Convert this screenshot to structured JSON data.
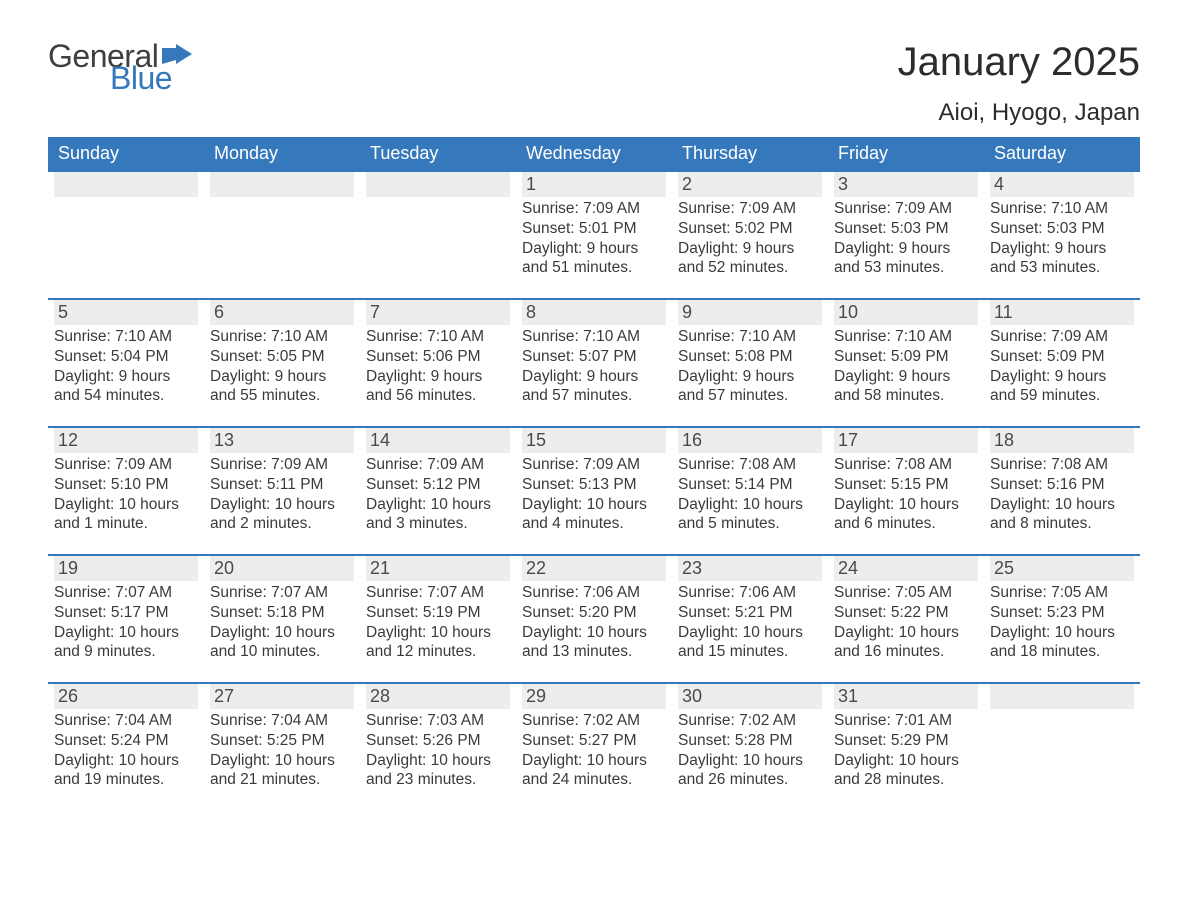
{
  "logo": {
    "text_general": "General",
    "text_blue": "Blue"
  },
  "title": "January 2025",
  "subtitle": "Aioi, Hyogo, Japan",
  "colors": {
    "header_bg": "#3579bc",
    "header_text": "#ffffff",
    "row_top_border": "#3579bc",
    "daynum_bg": "#ededed",
    "body_text": "#3a3a3a",
    "logo_blue": "#3579bc",
    "logo_gray": "#3f3f3f",
    "background": "#ffffff"
  },
  "typography": {
    "title_fontsize": 40,
    "subtitle_fontsize": 24,
    "dayheader_fontsize": 18,
    "daynum_fontsize": 18,
    "body_fontsize": 15.5,
    "font_family": "Arial"
  },
  "day_headers": [
    "Sunday",
    "Monday",
    "Tuesday",
    "Wednesday",
    "Thursday",
    "Friday",
    "Saturday"
  ],
  "weeks": [
    [
      null,
      null,
      null,
      {
        "n": "1",
        "sunrise": "Sunrise: 7:09 AM",
        "sunset": "Sunset: 5:01 PM",
        "daylight": "Daylight: 9 hours and 51 minutes."
      },
      {
        "n": "2",
        "sunrise": "Sunrise: 7:09 AM",
        "sunset": "Sunset: 5:02 PM",
        "daylight": "Daylight: 9 hours and 52 minutes."
      },
      {
        "n": "3",
        "sunrise": "Sunrise: 7:09 AM",
        "sunset": "Sunset: 5:03 PM",
        "daylight": "Daylight: 9 hours and 53 minutes."
      },
      {
        "n": "4",
        "sunrise": "Sunrise: 7:10 AM",
        "sunset": "Sunset: 5:03 PM",
        "daylight": "Daylight: 9 hours and 53 minutes."
      }
    ],
    [
      {
        "n": "5",
        "sunrise": "Sunrise: 7:10 AM",
        "sunset": "Sunset: 5:04 PM",
        "daylight": "Daylight: 9 hours and 54 minutes."
      },
      {
        "n": "6",
        "sunrise": "Sunrise: 7:10 AM",
        "sunset": "Sunset: 5:05 PM",
        "daylight": "Daylight: 9 hours and 55 minutes."
      },
      {
        "n": "7",
        "sunrise": "Sunrise: 7:10 AM",
        "sunset": "Sunset: 5:06 PM",
        "daylight": "Daylight: 9 hours and 56 minutes."
      },
      {
        "n": "8",
        "sunrise": "Sunrise: 7:10 AM",
        "sunset": "Sunset: 5:07 PM",
        "daylight": "Daylight: 9 hours and 57 minutes."
      },
      {
        "n": "9",
        "sunrise": "Sunrise: 7:10 AM",
        "sunset": "Sunset: 5:08 PM",
        "daylight": "Daylight: 9 hours and 57 minutes."
      },
      {
        "n": "10",
        "sunrise": "Sunrise: 7:10 AM",
        "sunset": "Sunset: 5:09 PM",
        "daylight": "Daylight: 9 hours and 58 minutes."
      },
      {
        "n": "11",
        "sunrise": "Sunrise: 7:09 AM",
        "sunset": "Sunset: 5:09 PM",
        "daylight": "Daylight: 9 hours and 59 minutes."
      }
    ],
    [
      {
        "n": "12",
        "sunrise": "Sunrise: 7:09 AM",
        "sunset": "Sunset: 5:10 PM",
        "daylight": "Daylight: 10 hours and 1 minute."
      },
      {
        "n": "13",
        "sunrise": "Sunrise: 7:09 AM",
        "sunset": "Sunset: 5:11 PM",
        "daylight": "Daylight: 10 hours and 2 minutes."
      },
      {
        "n": "14",
        "sunrise": "Sunrise: 7:09 AM",
        "sunset": "Sunset: 5:12 PM",
        "daylight": "Daylight: 10 hours and 3 minutes."
      },
      {
        "n": "15",
        "sunrise": "Sunrise: 7:09 AM",
        "sunset": "Sunset: 5:13 PM",
        "daylight": "Daylight: 10 hours and 4 minutes."
      },
      {
        "n": "16",
        "sunrise": "Sunrise: 7:08 AM",
        "sunset": "Sunset: 5:14 PM",
        "daylight": "Daylight: 10 hours and 5 minutes."
      },
      {
        "n": "17",
        "sunrise": "Sunrise: 7:08 AM",
        "sunset": "Sunset: 5:15 PM",
        "daylight": "Daylight: 10 hours and 6 minutes."
      },
      {
        "n": "18",
        "sunrise": "Sunrise: 7:08 AM",
        "sunset": "Sunset: 5:16 PM",
        "daylight": "Daylight: 10 hours and 8 minutes."
      }
    ],
    [
      {
        "n": "19",
        "sunrise": "Sunrise: 7:07 AM",
        "sunset": "Sunset: 5:17 PM",
        "daylight": "Daylight: 10 hours and 9 minutes."
      },
      {
        "n": "20",
        "sunrise": "Sunrise: 7:07 AM",
        "sunset": "Sunset: 5:18 PM",
        "daylight": "Daylight: 10 hours and 10 minutes."
      },
      {
        "n": "21",
        "sunrise": "Sunrise: 7:07 AM",
        "sunset": "Sunset: 5:19 PM",
        "daylight": "Daylight: 10 hours and 12 minutes."
      },
      {
        "n": "22",
        "sunrise": "Sunrise: 7:06 AM",
        "sunset": "Sunset: 5:20 PM",
        "daylight": "Daylight: 10 hours and 13 minutes."
      },
      {
        "n": "23",
        "sunrise": "Sunrise: 7:06 AM",
        "sunset": "Sunset: 5:21 PM",
        "daylight": "Daylight: 10 hours and 15 minutes."
      },
      {
        "n": "24",
        "sunrise": "Sunrise: 7:05 AM",
        "sunset": "Sunset: 5:22 PM",
        "daylight": "Daylight: 10 hours and 16 minutes."
      },
      {
        "n": "25",
        "sunrise": "Sunrise: 7:05 AM",
        "sunset": "Sunset: 5:23 PM",
        "daylight": "Daylight: 10 hours and 18 minutes."
      }
    ],
    [
      {
        "n": "26",
        "sunrise": "Sunrise: 7:04 AM",
        "sunset": "Sunset: 5:24 PM",
        "daylight": "Daylight: 10 hours and 19 minutes."
      },
      {
        "n": "27",
        "sunrise": "Sunrise: 7:04 AM",
        "sunset": "Sunset: 5:25 PM",
        "daylight": "Daylight: 10 hours and 21 minutes."
      },
      {
        "n": "28",
        "sunrise": "Sunrise: 7:03 AM",
        "sunset": "Sunset: 5:26 PM",
        "daylight": "Daylight: 10 hours and 23 minutes."
      },
      {
        "n": "29",
        "sunrise": "Sunrise: 7:02 AM",
        "sunset": "Sunset: 5:27 PM",
        "daylight": "Daylight: 10 hours and 24 minutes."
      },
      {
        "n": "30",
        "sunrise": "Sunrise: 7:02 AM",
        "sunset": "Sunset: 5:28 PM",
        "daylight": "Daylight: 10 hours and 26 minutes."
      },
      {
        "n": "31",
        "sunrise": "Sunrise: 7:01 AM",
        "sunset": "Sunset: 5:29 PM",
        "daylight": "Daylight: 10 hours and 28 minutes."
      },
      null
    ]
  ]
}
